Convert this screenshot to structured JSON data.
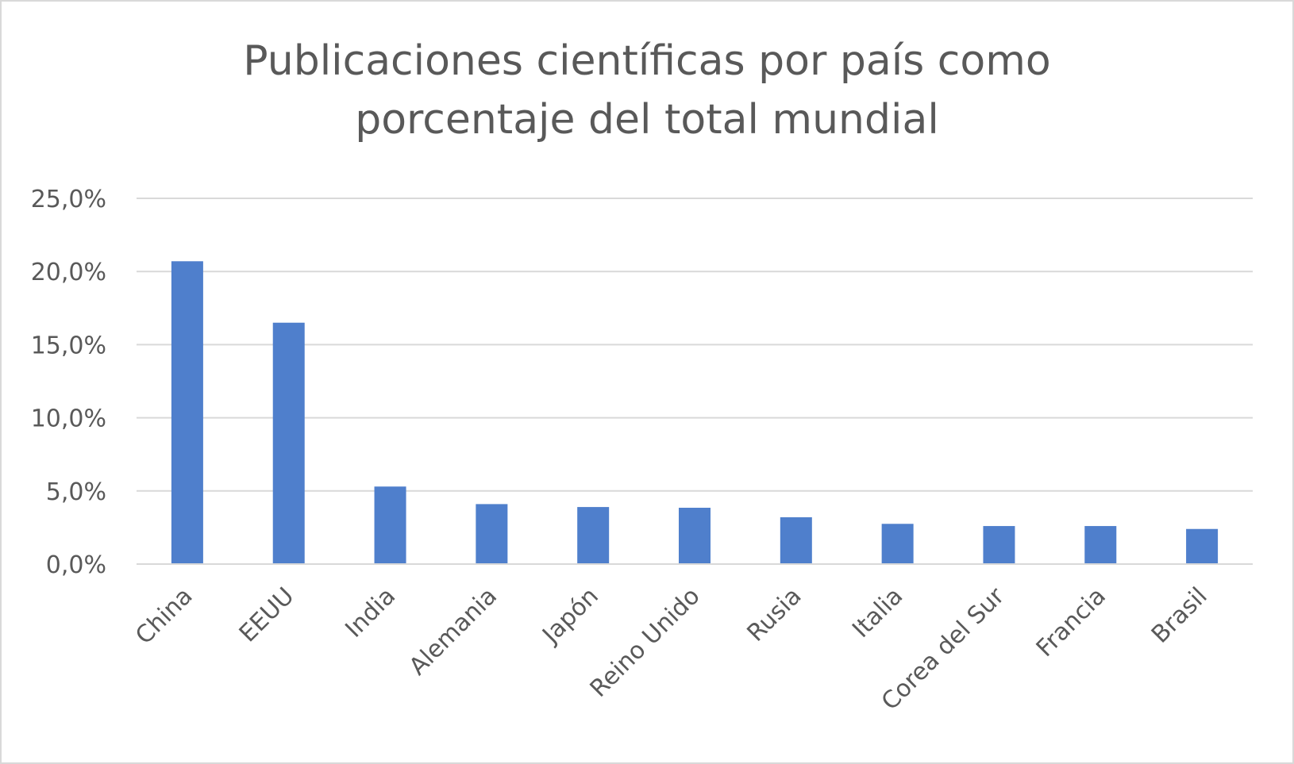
{
  "chart_data": {
    "type": "bar",
    "title": "Publicaciones científicas por país como\nporcentaje del total mundial",
    "xlabel": "",
    "ylabel": "",
    "categories": [
      "China",
      "EEUU",
      "India",
      "Alemania",
      "Japón",
      "Reino Unido",
      "Rusia",
      "Italia",
      "Corea del Sur",
      "Francia",
      "Brasil"
    ],
    "values": [
      20.7,
      16.5,
      5.3,
      4.1,
      3.9,
      3.85,
      3.2,
      2.75,
      2.6,
      2.6,
      2.4
    ],
    "ylim": [
      0,
      25
    ],
    "yticks": [
      0,
      5,
      10,
      15,
      20,
      25
    ],
    "ytick_labels": [
      "0,0%",
      "5,0%",
      "10,0%",
      "15,0%",
      "20,0%",
      "25,0%"
    ],
    "grid": true,
    "legend": "none",
    "colors": {
      "bar": "#4f7fcc",
      "grid": "#d9d9d9",
      "text": "#595959"
    }
  }
}
